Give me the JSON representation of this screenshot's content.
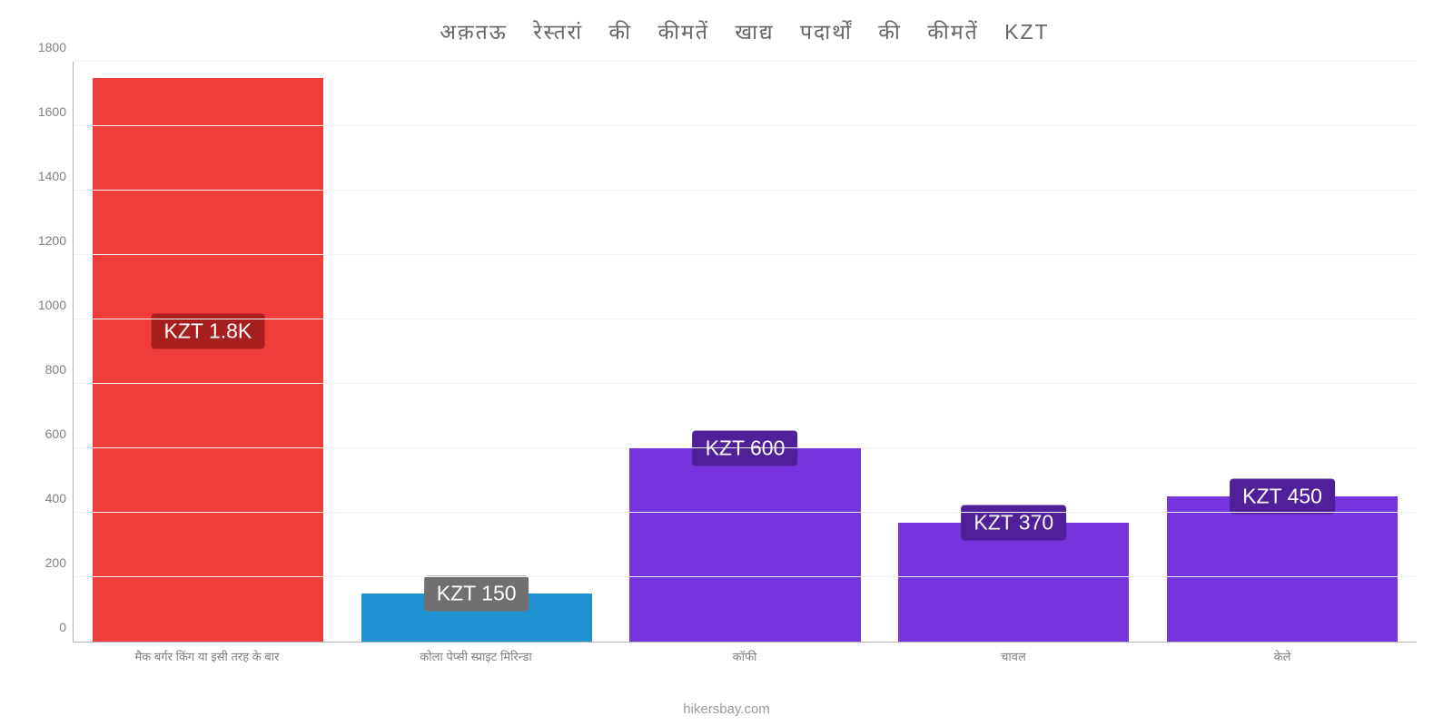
{
  "chart": {
    "type": "bar",
    "title": "अक़तऊ रेस्तरां की कीमतें खाद्य पदार्थों की कीमतें KZT",
    "title_fontsize": 23,
    "title_color": "#666666",
    "background_color": "#ffffff",
    "grid_color": "#f2f2f2",
    "axis_color": "#b0b0b0",
    "label_color": "#808080",
    "ylim": [
      0,
      1800
    ],
    "ytick_step": 200,
    "yticks": [
      "0",
      "200",
      "400",
      "600",
      "800",
      "1000",
      "1200",
      "1400",
      "1600",
      "1800"
    ],
    "bar_width_pct": 86,
    "categories": [
      "मैक बर्गर किंग या इसी तरह के बार",
      "कोला पेप्सी स्प्राइट मिरिन्डा",
      "कॉफी",
      "चावल",
      "केले"
    ],
    "values": [
      1750,
      150,
      600,
      370,
      450
    ],
    "value_labels": [
      "KZT 1.8K",
      "KZT 150",
      "KZT 600",
      "KZT 370",
      "KZT 450"
    ],
    "bar_colors": [
      "#ef3d3a",
      "#2193d2",
      "#7635dc",
      "#7635dc",
      "#7635dc"
    ],
    "badge_colors": [
      "#a7201e",
      "#707070",
      "#4f2099",
      "#4f2099",
      "#4f2099"
    ],
    "badge_fontsize": 23,
    "xlabel_fontsize": 13,
    "ytick_fontsize": 14,
    "source": "hikersbay.com",
    "badge_inside_index": 0
  }
}
